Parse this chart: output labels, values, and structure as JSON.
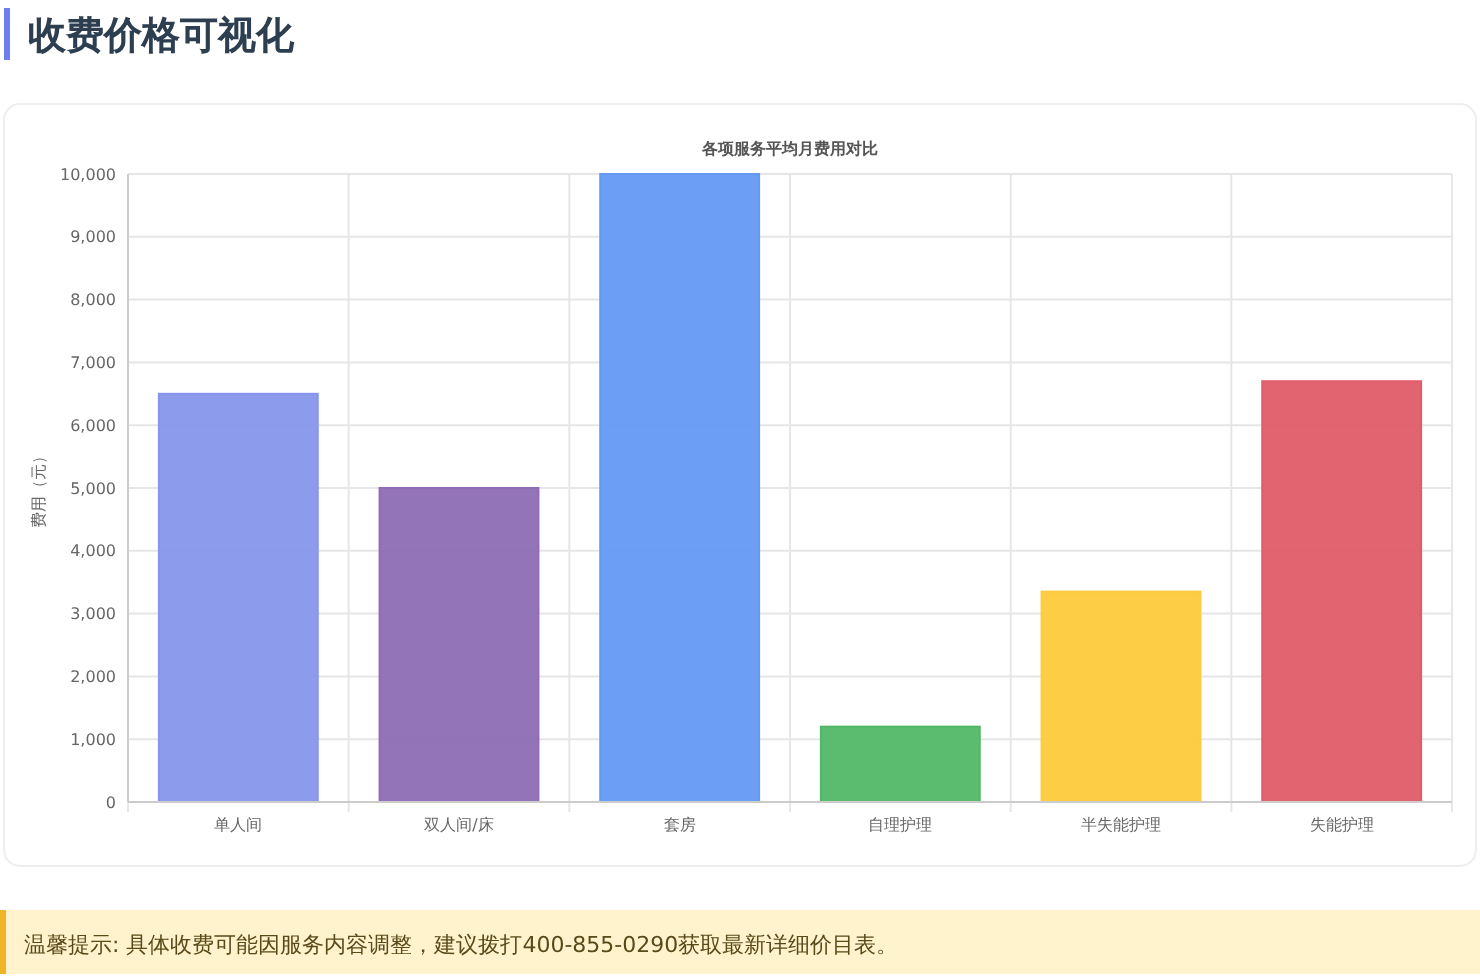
{
  "chart_data": {
    "type": "bar",
    "title": "收费价格可视化",
    "subtitle": "各项服务平均月费用对比",
    "ylabel": "费用（元）",
    "categories": [
      "单人间",
      "双人间/床",
      "套房",
      "自理护理",
      "半失能护理",
      "失能护理"
    ],
    "values": [
      6500,
      5000,
      10000,
      1200,
      3350,
      6700
    ],
    "colors": [
      "#8796ec",
      "#8e6db4",
      "#6399f3",
      "#52b867",
      "#fdcb3b",
      "#e15c69"
    ],
    "ylim": [
      0,
      10000
    ],
    "yticks": [
      {
        "value": 0,
        "label": "0"
      },
      {
        "value": 1000,
        "label": "1,000"
      },
      {
        "value": 2000,
        "label": "2,000"
      },
      {
        "value": 3000,
        "label": "3,000"
      },
      {
        "value": 4000,
        "label": "4,000"
      },
      {
        "value": 5000,
        "label": "5,000"
      },
      {
        "value": 6000,
        "label": "6,000"
      },
      {
        "value": 7000,
        "label": "7,000"
      },
      {
        "value": 8000,
        "label": "8,000"
      },
      {
        "value": 9000,
        "label": "9,000"
      },
      {
        "value": 10000,
        "label": "10,000"
      }
    ],
    "grid": true,
    "annotations": [
      "温馨提示: 具体收费可能因服务内容调整，建议拨打400-855-0290获取最新详细价目表。"
    ]
  }
}
